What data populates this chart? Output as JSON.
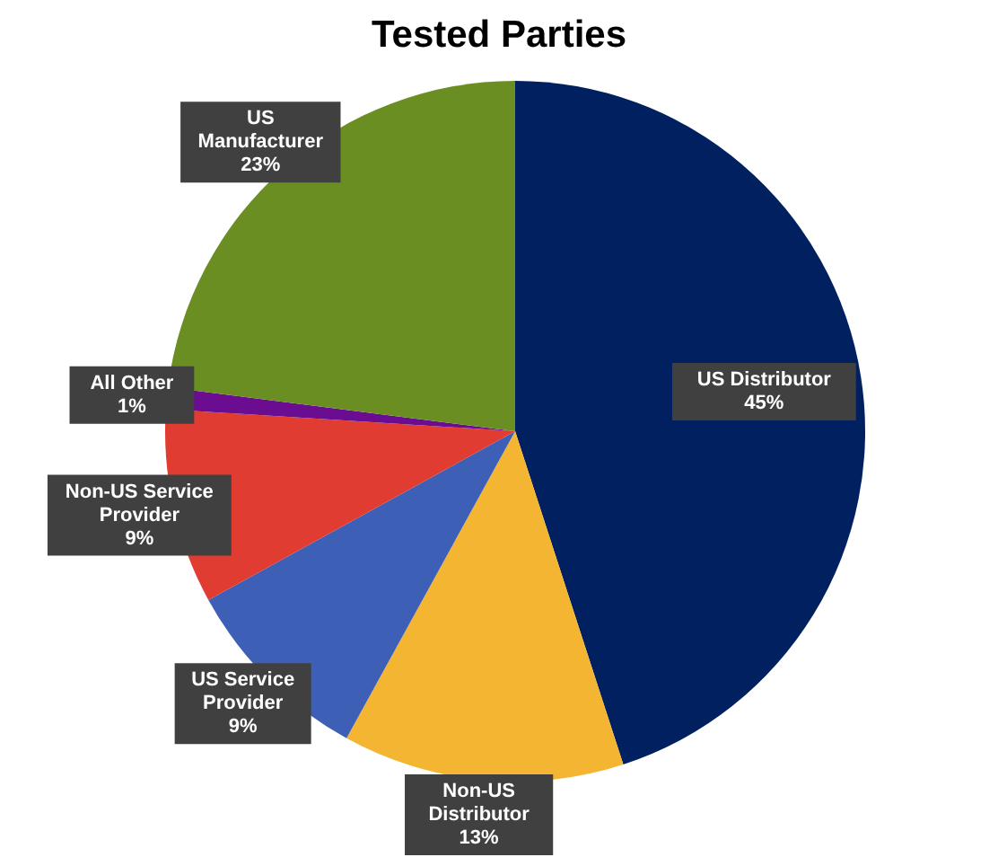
{
  "chart_data": {
    "type": "pie",
    "title": "Tested Parties",
    "categories": [
      "US Distributor",
      "Non-US Distributor",
      "US Service Provider",
      "Non-US Service Provider",
      "All Other",
      "US Manufacturer"
    ],
    "values": [
      45,
      13,
      9,
      9,
      1,
      23
    ],
    "value_labels": [
      "45%",
      "13%",
      "9%",
      "9%",
      "1%",
      "23%"
    ],
    "colors": [
      "#002060",
      "#f4b533",
      "#3d5fb5",
      "#e03c31",
      "#6a0d91",
      "#6b8e23"
    ],
    "legend": false
  }
}
